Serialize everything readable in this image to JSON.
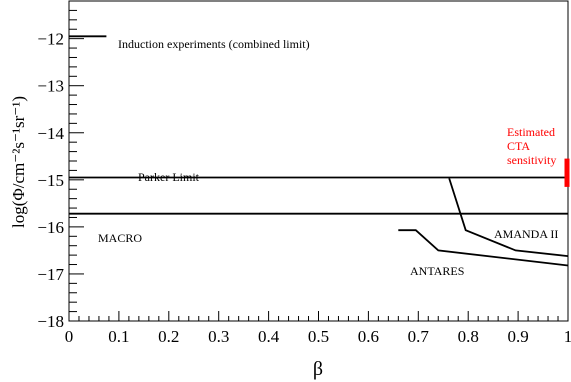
{
  "chart_data": {
    "type": "line",
    "title": "",
    "xlabel": "β",
    "ylabel": "log(Φ/cm⁻²s⁻¹sr⁻¹)",
    "xlim": [
      0,
      1
    ],
    "ylim": [
      -18,
      -11.2
    ],
    "x_ticks": [
      0,
      0.1,
      0.2,
      0.3,
      0.4,
      0.5,
      0.6,
      0.7,
      0.8,
      0.9,
      1
    ],
    "x_tick_labels": [
      "0",
      "0.1",
      "0.2",
      "0.3",
      "0.4",
      "0.5",
      "0.6",
      "0.7",
      "0.8",
      "0.9",
      "1"
    ],
    "y_ticks": [
      -18,
      -17,
      -16,
      -15,
      -14,
      -13,
      -12
    ],
    "y_tick_labels": [
      "−18",
      "−17",
      "−16",
      "−15",
      "−14",
      "−13",
      "−12"
    ],
    "grid": false,
    "series": [
      {
        "name": "Induction experiments (combined limit)",
        "color": "#000000",
        "x": [
          0,
          0.075
        ],
        "y": [
          -11.95,
          -11.95
        ]
      },
      {
        "name": "Parker Limit",
        "color": "#000000",
        "x": [
          0,
          1
        ],
        "y": [
          -14.95,
          -14.95
        ]
      },
      {
        "name": "MACRO",
        "color": "#000000",
        "x": [
          0,
          1
        ],
        "y": [
          -15.72,
          -15.72
        ]
      },
      {
        "name": "AMANDA II",
        "color": "#000000",
        "x": [
          0.762,
          0.795,
          0.895,
          1.0
        ],
        "y": [
          -14.97,
          -16.07,
          -16.5,
          -16.62
        ]
      },
      {
        "name": "ANTARES",
        "color": "#000000",
        "x": [
          0.66,
          0.695,
          0.74,
          1.0
        ],
        "y": [
          -16.07,
          -16.07,
          -16.5,
          -16.82
        ]
      },
      {
        "name": "Estimated CTA sensitivity",
        "color": "#ff0000",
        "x": [
          0.998,
          0.998
        ],
        "y": [
          -14.55,
          -15.15
        ]
      }
    ],
    "labels": {
      "induction": "Induction experiments (combined limit)",
      "parker": "Parker Limit",
      "macro": "MACRO",
      "amanda": "AMANDA II",
      "antares": "ANTARES",
      "cta_line1": "Estimated",
      "cta_line2": "CTA",
      "cta_line3": "sensitivity"
    }
  }
}
